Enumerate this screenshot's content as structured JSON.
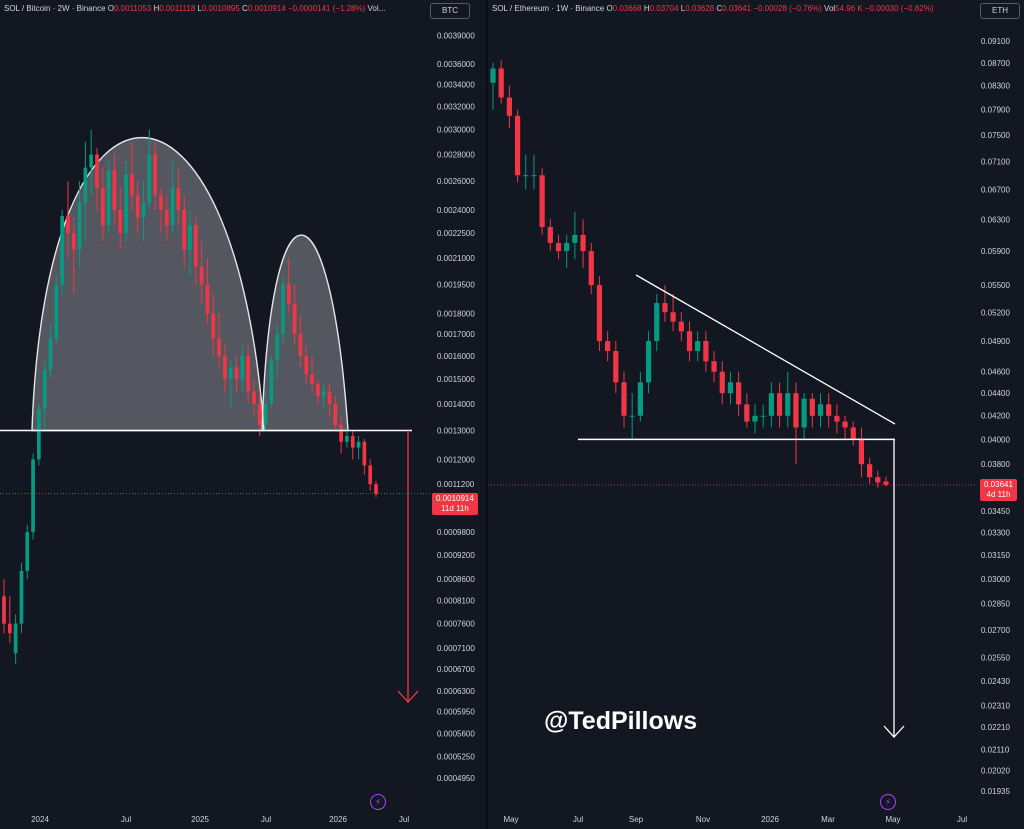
{
  "left": {
    "legend": {
      "symbol": "SOL / Bitcoin · 2W · Binance",
      "o_label": "O",
      "o": "0.0011053",
      "h_label": "H",
      "h": "0.0011118",
      "l_label": "L",
      "l": "0.0010895",
      "c_label": "C",
      "c": "0.0010914",
      "change": "−0.0000141 (−1.28%)",
      "vol_label": "Vol..."
    },
    "unit": "BTC",
    "price_tag": {
      "value": "0.0010914",
      "countdown": "11d 11h"
    },
    "watermark": "",
    "bolt_icon": "⚡"
  },
  "right": {
    "legend": {
      "symbol": "SOL / Ethereum · 1W · Binance",
      "o_label": "O",
      "o": "0.03668",
      "h_label": "H",
      "h": "0.03704",
      "l_label": "L",
      "l": "0.03628",
      "c_label": "C",
      "c": "0.03641",
      "change": "−0.00028 (−0.76%)",
      "vol_label": "Vol",
      "vol": "54.96 K",
      "vol_change": "−0.00030 (−0.82%)"
    },
    "unit": "ETH",
    "price_tag": {
      "value": "0.03641",
      "countdown": "4d 11h"
    },
    "watermark": "@TedPillows",
    "bolt_icon": "⚡"
  },
  "chart_data": [
    {
      "type": "candlestick",
      "title": "SOL / Bitcoin · 2W · Binance",
      "y_scale": "log",
      "ylim": [
        0.000472,
        0.00398
      ],
      "x_ticks": [
        "2024",
        "Jul",
        "2025",
        "Jul",
        "2026",
        "Jul"
      ],
      "y_ticks": [
        "0.0039000",
        "0.0036000",
        "0.0034000",
        "0.0032000",
        "0.0030000",
        "0.0028000",
        "0.0026000",
        "0.0024000",
        "0.0022500",
        "0.0021000",
        "0.0019500",
        "0.0018000",
        "0.0017000",
        "0.0016000",
        "0.0015000",
        "0.0014000",
        "0.0013000",
        "0.0012000",
        "0.0011200",
        "0.0010400",
        "0.0009800",
        "0.0009200",
        "0.0008600",
        "0.0008100",
        "0.0007600",
        "0.0007100",
        "0.0006700",
        "0.0006300",
        "0.0005950",
        "0.0005600",
        "0.0005250",
        "0.0004950"
      ],
      "neckline": 0.0013,
      "last_close": 0.0010914,
      "candles_ohlc": [
        [
          0.00082,
          0.00086,
          0.00074,
          0.00076
        ],
        [
          0.00076,
          0.00082,
          0.00072,
          0.00074
        ],
        [
          0.0007,
          0.00078,
          0.00068,
          0.00076
        ],
        [
          0.00076,
          0.0009,
          0.00074,
          0.00088
        ],
        [
          0.00088,
          0.001,
          0.00086,
          0.00098
        ],
        [
          0.00098,
          0.00122,
          0.00096,
          0.0012
        ],
        [
          0.0012,
          0.0014,
          0.00118,
          0.00138
        ],
        [
          0.00138,
          0.00158,
          0.0013,
          0.00154
        ],
        [
          0.00154,
          0.00175,
          0.0015,
          0.00168
        ],
        [
          0.00168,
          0.002,
          0.00165,
          0.00195
        ],
        [
          0.00195,
          0.0024,
          0.0019,
          0.00236
        ],
        [
          0.00236,
          0.0026,
          0.0021,
          0.00225
        ],
        [
          0.00225,
          0.00235,
          0.0019,
          0.00215
        ],
        [
          0.00215,
          0.0026,
          0.00205,
          0.00245
        ],
        [
          0.00245,
          0.0029,
          0.0022,
          0.0027
        ],
        [
          0.0027,
          0.003,
          0.0025,
          0.0028
        ],
        [
          0.0028,
          0.00285,
          0.0024,
          0.00255
        ],
        [
          0.00255,
          0.0027,
          0.0022,
          0.0023
        ],
        [
          0.0023,
          0.00275,
          0.00225,
          0.00268
        ],
        [
          0.00268,
          0.0028,
          0.0023,
          0.0024
        ],
        [
          0.0024,
          0.00255,
          0.00215,
          0.00225
        ],
        [
          0.00225,
          0.00275,
          0.0022,
          0.00265
        ],
        [
          0.00265,
          0.0029,
          0.0024,
          0.0025
        ],
        [
          0.0025,
          0.0026,
          0.00225,
          0.00235
        ],
        [
          0.00235,
          0.0026,
          0.0022,
          0.00245
        ],
        [
          0.00245,
          0.003,
          0.0024,
          0.0028
        ],
        [
          0.0028,
          0.0029,
          0.0024,
          0.0025
        ],
        [
          0.0025,
          0.00255,
          0.00225,
          0.0024
        ],
        [
          0.0024,
          0.0025,
          0.0022,
          0.0023
        ],
        [
          0.0023,
          0.00275,
          0.00225,
          0.00255
        ],
        [
          0.00255,
          0.0027,
          0.0023,
          0.0024
        ],
        [
          0.0024,
          0.0025,
          0.00205,
          0.00215
        ],
        [
          0.00215,
          0.0024,
          0.002,
          0.0023
        ],
        [
          0.0023,
          0.00235,
          0.00195,
          0.00205
        ],
        [
          0.00205,
          0.0022,
          0.00185,
          0.00195
        ],
        [
          0.00195,
          0.0021,
          0.00175,
          0.0018
        ],
        [
          0.0018,
          0.0019,
          0.0016,
          0.00168
        ],
        [
          0.00168,
          0.0018,
          0.00155,
          0.0016
        ],
        [
          0.0016,
          0.00165,
          0.00145,
          0.0015
        ],
        [
          0.0015,
          0.00158,
          0.00138,
          0.00155
        ],
        [
          0.00155,
          0.0016,
          0.00145,
          0.0015
        ],
        [
          0.0015,
          0.00165,
          0.00145,
          0.0016
        ],
        [
          0.0016,
          0.00165,
          0.0014,
          0.00145
        ],
        [
          0.00145,
          0.0015,
          0.00135,
          0.0014
        ],
        [
          0.0014,
          0.00145,
          0.00128,
          0.00132
        ],
        [
          0.00132,
          0.00145,
          0.0013,
          0.0014
        ],
        [
          0.0014,
          0.0016,
          0.00138,
          0.00158
        ],
        [
          0.00158,
          0.00175,
          0.0015,
          0.0017
        ],
        [
          0.0017,
          0.002,
          0.00165,
          0.00195
        ],
        [
          0.00195,
          0.0021,
          0.0018,
          0.00185
        ],
        [
          0.00185,
          0.00195,
          0.00165,
          0.0017
        ],
        [
          0.0017,
          0.00178,
          0.00155,
          0.0016
        ],
        [
          0.0016,
          0.00165,
          0.00148,
          0.00152
        ],
        [
          0.00152,
          0.0016,
          0.00145,
          0.00148
        ],
        [
          0.00148,
          0.0015,
          0.0014,
          0.00143
        ],
        [
          0.00143,
          0.00148,
          0.00138,
          0.00145
        ],
        [
          0.00145,
          0.00148,
          0.00135,
          0.0014
        ],
        [
          0.0014,
          0.00143,
          0.0013,
          0.00132
        ],
        [
          0.00132,
          0.00135,
          0.00122,
          0.00126
        ],
        [
          0.00126,
          0.0013,
          0.00124,
          0.00128
        ],
        [
          0.00128,
          0.0013,
          0.0012,
          0.00124
        ],
        [
          0.00124,
          0.00128,
          0.0012,
          0.00126
        ],
        [
          0.00126,
          0.00127,
          0.00115,
          0.00118
        ],
        [
          0.00118,
          0.0012,
          0.0011,
          0.00112
        ],
        [
          0.00112,
          0.00113,
          0.00108,
          0.00109
        ]
      ]
    },
    {
      "type": "candlestick",
      "title": "SOL / Ethereum · 1W · Binance",
      "y_scale": "log",
      "ylim": [
        0.0192,
        0.0935
      ],
      "x_ticks": [
        "May",
        "Jul",
        "Sep",
        "Nov",
        "2026",
        "Mar",
        "May",
        "Jul"
      ],
      "y_ticks": [
        "0.09100",
        "0.08700",
        "0.08300",
        "0.07900",
        "0.07500",
        "0.07100",
        "0.06700",
        "0.06300",
        "0.05900",
        "0.05500",
        "0.05200",
        "0.04900",
        "0.04600",
        "0.04400",
        "0.04200",
        "0.04000",
        "0.03800",
        "0.03600",
        "0.03450",
        "0.03300",
        "0.03150",
        "0.03000",
        "0.02850",
        "0.02700",
        "0.02550",
        "0.02430",
        "0.02310",
        "0.02210",
        "0.02110",
        "0.02020",
        "0.01935"
      ],
      "support": 0.04,
      "last_close": 0.03641,
      "candles_ohlc": [
        [
          0.0835,
          0.087,
          0.079,
          0.086
        ],
        [
          0.086,
          0.0875,
          0.08,
          0.081
        ],
        [
          0.081,
          0.083,
          0.076,
          0.078
        ],
        [
          0.078,
          0.079,
          0.068,
          0.069
        ],
        [
          0.069,
          0.072,
          0.067,
          0.069
        ],
        [
          0.069,
          0.072,
          0.067,
          0.069
        ],
        [
          0.069,
          0.07,
          0.061,
          0.062
        ],
        [
          0.062,
          0.063,
          0.059,
          0.06
        ],
        [
          0.06,
          0.061,
          0.058,
          0.059
        ],
        [
          0.059,
          0.061,
          0.057,
          0.06
        ],
        [
          0.06,
          0.064,
          0.058,
          0.061
        ],
        [
          0.061,
          0.063,
          0.057,
          0.059
        ],
        [
          0.059,
          0.06,
          0.054,
          0.055
        ],
        [
          0.055,
          0.056,
          0.048,
          0.049
        ],
        [
          0.049,
          0.05,
          0.047,
          0.048
        ],
        [
          0.048,
          0.049,
          0.044,
          0.045
        ],
        [
          0.045,
          0.046,
          0.041,
          0.042
        ],
        [
          0.042,
          0.044,
          0.04,
          0.042
        ],
        [
          0.042,
          0.046,
          0.0415,
          0.045
        ],
        [
          0.045,
          0.05,
          0.044,
          0.049
        ],
        [
          0.049,
          0.054,
          0.048,
          0.053
        ],
        [
          0.053,
          0.055,
          0.051,
          0.052
        ],
        [
          0.052,
          0.054,
          0.05,
          0.051
        ],
        [
          0.051,
          0.052,
          0.049,
          0.05
        ],
        [
          0.05,
          0.051,
          0.047,
          0.048
        ],
        [
          0.048,
          0.05,
          0.047,
          0.049
        ],
        [
          0.049,
          0.05,
          0.046,
          0.047
        ],
        [
          0.047,
          0.048,
          0.045,
          0.046
        ],
        [
          0.046,
          0.047,
          0.043,
          0.044
        ],
        [
          0.044,
          0.046,
          0.043,
          0.045
        ],
        [
          0.045,
          0.046,
          0.042,
          0.043
        ],
        [
          0.043,
          0.044,
          0.041,
          0.0415
        ],
        [
          0.0415,
          0.043,
          0.0405,
          0.042
        ],
        [
          0.042,
          0.043,
          0.041,
          0.042
        ],
        [
          0.042,
          0.045,
          0.041,
          0.044
        ],
        [
          0.044,
          0.045,
          0.041,
          0.042
        ],
        [
          0.042,
          0.046,
          0.041,
          0.044
        ],
        [
          0.044,
          0.045,
          0.038,
          0.041
        ],
        [
          0.041,
          0.044,
          0.04,
          0.0435
        ],
        [
          0.0435,
          0.044,
          0.041,
          0.042
        ],
        [
          0.042,
          0.044,
          0.041,
          0.043
        ],
        [
          0.043,
          0.044,
          0.041,
          0.042
        ],
        [
          0.042,
          0.043,
          0.0405,
          0.0415
        ],
        [
          0.0415,
          0.042,
          0.04,
          0.041
        ],
        [
          0.041,
          0.0415,
          0.0395,
          0.04
        ],
        [
          0.04,
          0.041,
          0.037,
          0.038
        ],
        [
          0.038,
          0.0385,
          0.0365,
          0.037
        ],
        [
          0.037,
          0.0375,
          0.0362,
          0.0366
        ],
        [
          0.03668,
          0.03704,
          0.03628,
          0.03641
        ]
      ]
    }
  ]
}
